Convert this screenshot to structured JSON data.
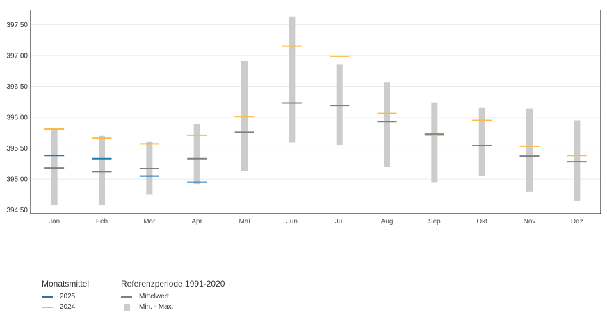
{
  "chart_data": {
    "type": "range-bar",
    "categories": [
      "Jan",
      "Feb",
      "Mär",
      "Apr",
      "Mai",
      "Jun",
      "Jul",
      "Aug",
      "Sep",
      "Okt",
      "Nov",
      "Dez"
    ],
    "ylim": [
      394.44,
      397.74
    ],
    "yticks": [
      "394.50",
      "395.00",
      "395.50",
      "396.00",
      "396.50",
      "397.00",
      "397.50"
    ],
    "grid": true,
    "legend_position": "bottom-left",
    "series": [
      {
        "name": "2025",
        "kind": "marker",
        "color": "#1f77b4",
        "values": [
          395.38,
          395.33,
          395.05,
          394.95,
          null,
          null,
          null,
          null,
          null,
          null,
          null,
          null
        ]
      },
      {
        "name": "2024",
        "kind": "marker",
        "color": "#ffb847",
        "values": [
          395.81,
          395.66,
          395.57,
          395.71,
          396.01,
          397.15,
          396.99,
          396.06,
          395.71,
          395.95,
          395.53,
          395.38
        ]
      },
      {
        "name": "Mittelwert",
        "kind": "marker",
        "color": "#7f7f7f",
        "values": [
          395.18,
          395.12,
          395.17,
          395.33,
          395.76,
          396.23,
          396.19,
          395.93,
          395.73,
          395.54,
          395.37,
          395.28
        ]
      },
      {
        "name": "Min. - Max.",
        "kind": "range",
        "color": "#cccccc",
        "min": [
          394.58,
          394.58,
          394.75,
          394.92,
          395.13,
          395.59,
          395.55,
          395.2,
          394.94,
          395.05,
          394.79,
          394.65
        ],
        "max": [
          395.82,
          395.7,
          395.61,
          395.9,
          396.91,
          397.63,
          396.86,
          396.57,
          396.24,
          396.16,
          396.14,
          395.95
        ]
      }
    ]
  },
  "legend": {
    "group1": {
      "title": "Monatsmittel",
      "items": [
        "2025",
        "2024"
      ]
    },
    "group2": {
      "title": "Referenzperiode 1991-2020",
      "items": [
        "Mittelwert",
        "Min. - Max."
      ]
    }
  }
}
